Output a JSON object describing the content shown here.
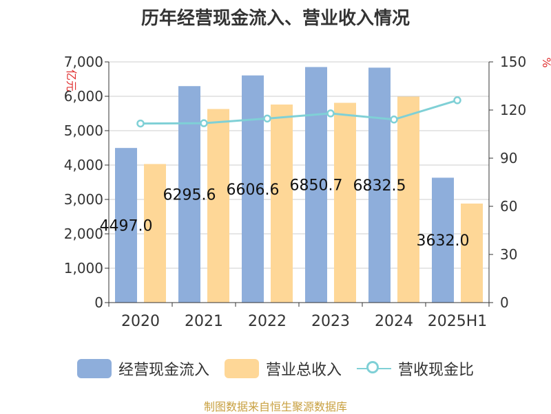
{
  "title": "历年经营现金流入、营业收入情况",
  "source": "制图数据来自恒生聚源数据库",
  "colors": {
    "cash_inflow": "#8eaedb",
    "revenue": "#fed797",
    "ratio": "#7fd0d6",
    "unit_label": "#e03030",
    "text": "#333333",
    "grid": "#cccccc",
    "source": "#c8a040"
  },
  "chart_data": {
    "type": "bar",
    "title": "历年经营现金流入、营业收入情况",
    "categories": [
      "2020",
      "2021",
      "2022",
      "2023",
      "2024",
      "2025H1"
    ],
    "y_left": {
      "label": "亿元",
      "ylim": [
        0,
        7000
      ],
      "ticks": [
        "0",
        "1,000",
        "2,000",
        "3,000",
        "4,000",
        "5,000",
        "6,000",
        "7,000"
      ]
    },
    "y_right": {
      "label": "%",
      "ylim": [
        0,
        150
      ],
      "ticks": [
        "0",
        "30",
        "60",
        "90",
        "120",
        "150"
      ]
    },
    "grid": true,
    "legend_position": "bottom",
    "series": [
      {
        "name": "经营现金流入",
        "type": "bar",
        "axis": "left",
        "values": [
          4497.0,
          6295.6,
          6606.6,
          6850.7,
          6832.5,
          3632.0
        ],
        "labels": [
          "4497.0",
          "6295.6",
          "6606.6",
          "6850.7",
          "6832.5",
          "3632.0"
        ]
      },
      {
        "name": "营业总收入",
        "type": "bar",
        "axis": "left",
        "values": [
          4030,
          5630,
          5760,
          5810,
          5990,
          2880
        ]
      },
      {
        "name": "营收现金比",
        "type": "line",
        "axis": "right",
        "values": [
          111.6,
          111.8,
          114.7,
          117.9,
          114.1,
          126.1
        ]
      }
    ]
  }
}
